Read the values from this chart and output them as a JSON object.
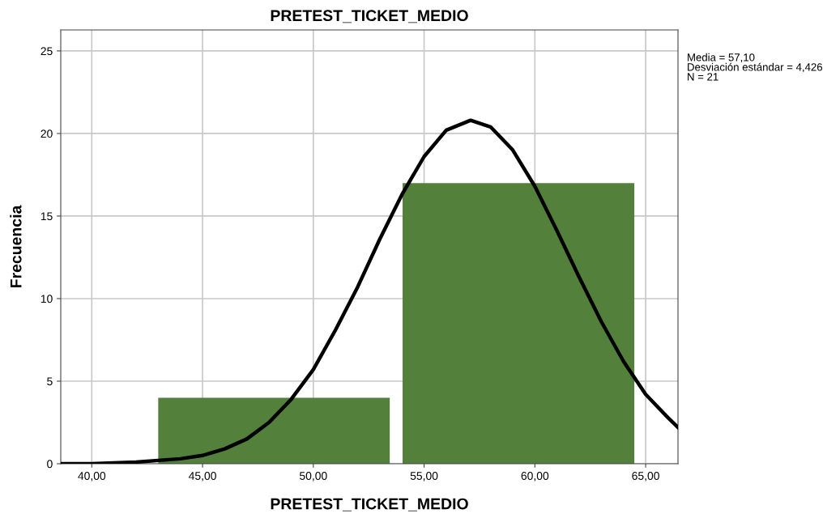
{
  "chart_data": {
    "type": "histogram",
    "title": "PRETEST_TICKET_MEDIO",
    "xlabel": "PRETEST_TICKET_MEDIO",
    "ylabel": "Frecuencia",
    "bins": [
      43.0,
      53.45,
      54.03,
      64.49
    ],
    "values": [
      4,
      0,
      17
    ],
    "color": "#53803a",
    "series": [
      {
        "type": "line",
        "color": "#000000",
        "x": [
          38.6,
          40,
          42,
          44,
          45,
          46,
          47,
          48,
          49,
          50,
          51,
          52,
          53,
          54,
          55,
          56,
          57.1,
          58,
          59,
          60,
          61,
          62,
          63,
          64,
          65,
          66,
          66.46
        ],
        "values": [
          0.0,
          0.0,
          0.1,
          0.3,
          0.5,
          0.9,
          1.5,
          2.5,
          3.9,
          5.7,
          8.1,
          10.7,
          13.6,
          16.3,
          18.6,
          20.2,
          20.8,
          20.4,
          19.0,
          16.8,
          14.1,
          11.3,
          8.6,
          6.2,
          4.2,
          2.8,
          2.2
        ]
      }
    ],
    "annotations": [
      "Media = 57,10",
      "Desviación estándar = 4,426",
      "N = 21"
    ],
    "xlim": [
      38.6,
      66.46
    ],
    "ylim": [
      0,
      26.27
    ],
    "xticks": [
      {
        "value": 40,
        "label": "40,00"
      },
      {
        "value": 45,
        "label": "45,00"
      },
      {
        "value": 50,
        "label": "50,00"
      },
      {
        "value": 55,
        "label": "55,00"
      },
      {
        "value": 60,
        "label": "60,00"
      },
      {
        "value": 65,
        "label": "65,00"
      }
    ],
    "yticks": [
      0,
      5,
      10,
      15,
      20,
      25
    ],
    "grid": true
  }
}
